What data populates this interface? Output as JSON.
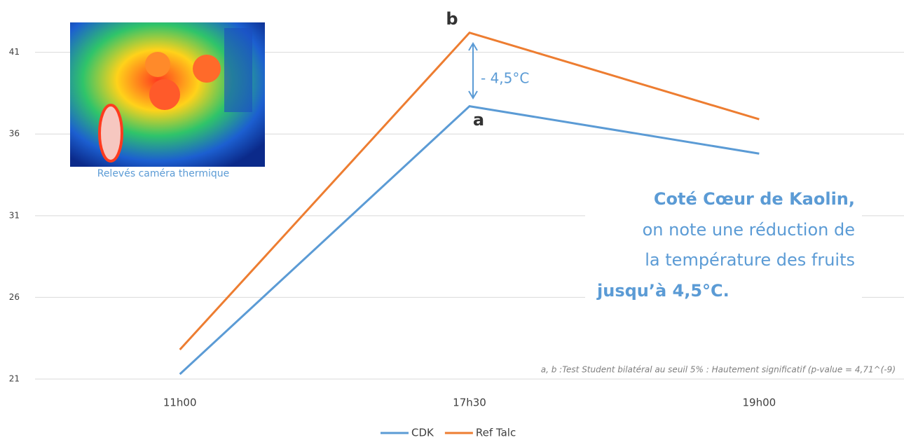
{
  "chart_data": {
    "type": "line",
    "categories": [
      "11h00",
      "17h30",
      "19h00"
    ],
    "series": [
      {
        "name": "CDK",
        "color": "#5b9bd5",
        "values": [
          21.3,
          37.7,
          34.8
        ]
      },
      {
        "name": "Ref Talc",
        "color": "#ed7d31",
        "values": [
          22.8,
          42.2,
          36.9
        ]
      }
    ],
    "ylim": [
      21,
      43
    ],
    "yticks": [
      21,
      26,
      31,
      36,
      41
    ],
    "grid": true,
    "legend": "bottom",
    "annotations": {
      "b": "b",
      "a": "a",
      "difference": "- 4,5°C",
      "image_caption": "Relevés caméra thermique",
      "headline": "Coté Cœur de Kaolin,",
      "body": [
        "on note une réduction de",
        "la température des fruits"
      ],
      "emphasis": "jusqu’à 4,5°C.",
      "footnote": "a, b :Test Student bilatéral au seuil 5% : Hautement significatif (p-value = 4,71^(-9)"
    }
  }
}
